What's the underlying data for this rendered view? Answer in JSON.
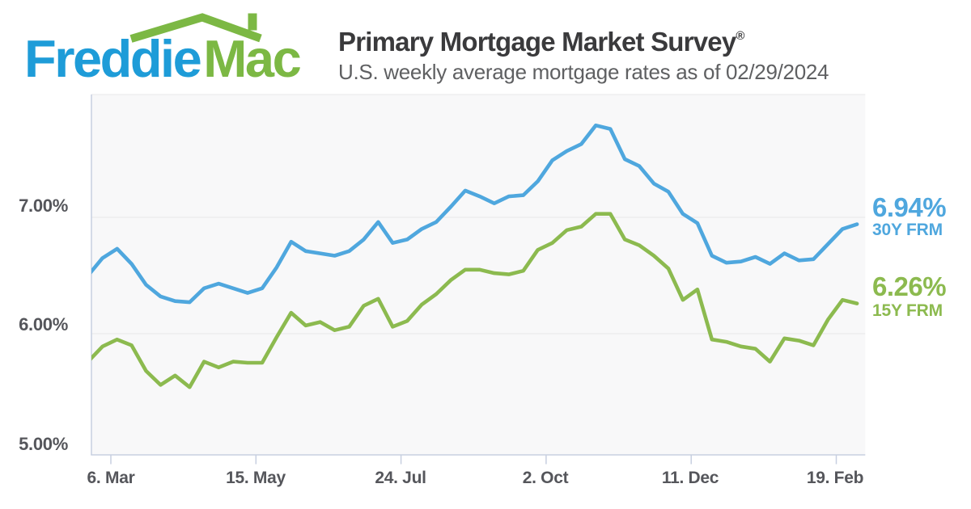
{
  "header": {
    "logo_word1": "Freddie",
    "logo_word2": "Mac",
    "title": "Primary Mortgage Market Survey",
    "title_mark": "®",
    "subtitle": "U.S. weekly average mortgage rates as of 02/29/2024"
  },
  "axes": {
    "y_labels": [
      "7.00%",
      "6.00%",
      "5.00%"
    ],
    "x_labels": [
      "6. Mar",
      "15. May",
      "24. Jul",
      "2. Oct",
      "11. Dec",
      "19. Feb"
    ]
  },
  "legend": {
    "series1_value": "6.94%",
    "series1_name": "30Y FRM",
    "series2_value": "6.26%",
    "series2_name": "15Y FRM"
  },
  "colors": {
    "line_blue": "#4FA7DE",
    "line_green": "#8CBA4F",
    "logo_blue": "#1E9CD8",
    "logo_green": "#7CB844",
    "title_text": "#3A3A3C",
    "subtitle_text": "#5F6062",
    "axis_text": "#55565B",
    "plot_background": "#F8F8F9",
    "gridline": "#E7E7E9",
    "axis_line": "#C7CFE0"
  },
  "chart_data": {
    "type": "line",
    "title": "Primary Mortgage Market Survey®",
    "subtitle": "U.S. weekly average mortgage rates as of 02/29/2024",
    "x_unit": "weekly observations",
    "x_range": [
      "2023-02-23",
      "2024-02-29"
    ],
    "x_tick_labels": [
      "6. Mar",
      "15. May",
      "24. Jul",
      "2. Oct",
      "11. Dec",
      "19. Feb"
    ],
    "y_ticks": [
      7.0,
      6.0,
      5.0
    ],
    "y_tick_labels": [
      "7.00%",
      "6.00%",
      "5.00%"
    ],
    "ylim": [
      4.95,
      8.05
    ],
    "grid": "horizontal",
    "legend_position": "right-end value labels",
    "series": [
      {
        "name": "30Y FRM",
        "latest_value": 6.94,
        "color": "#4FA7DE",
        "values": [
          6.5,
          6.65,
          6.73,
          6.6,
          6.42,
          6.32,
          6.28,
          6.27,
          6.39,
          6.43,
          6.39,
          6.35,
          6.39,
          6.57,
          6.79,
          6.71,
          6.69,
          6.67,
          6.71,
          6.81,
          6.96,
          6.78,
          6.81,
          6.9,
          6.96,
          7.09,
          7.23,
          7.18,
          7.12,
          7.18,
          7.19,
          7.31,
          7.49,
          7.57,
          7.63,
          7.79,
          7.76,
          7.5,
          7.44,
          7.29,
          7.22,
          7.03,
          6.95,
          6.67,
          6.61,
          6.62,
          6.66,
          6.6,
          6.69,
          6.63,
          6.64,
          6.77,
          6.9,
          6.94
        ]
      },
      {
        "name": "15Y FRM",
        "latest_value": 6.26,
        "color": "#8CBA4F",
        "values": [
          5.76,
          5.89,
          5.95,
          5.9,
          5.68,
          5.56,
          5.64,
          5.54,
          5.76,
          5.71,
          5.76,
          5.75,
          5.75,
          5.97,
          6.18,
          6.07,
          6.1,
          6.03,
          6.06,
          6.24,
          6.3,
          6.06,
          6.11,
          6.25,
          6.34,
          6.46,
          6.55,
          6.55,
          6.52,
          6.51,
          6.54,
          6.72,
          6.78,
          6.89,
          6.92,
          7.03,
          7.03,
          6.81,
          6.76,
          6.67,
          6.56,
          6.29,
          6.38,
          5.95,
          5.93,
          5.89,
          5.87,
          5.76,
          5.96,
          5.94,
          5.9,
          6.12,
          6.29,
          6.26
        ]
      }
    ]
  }
}
